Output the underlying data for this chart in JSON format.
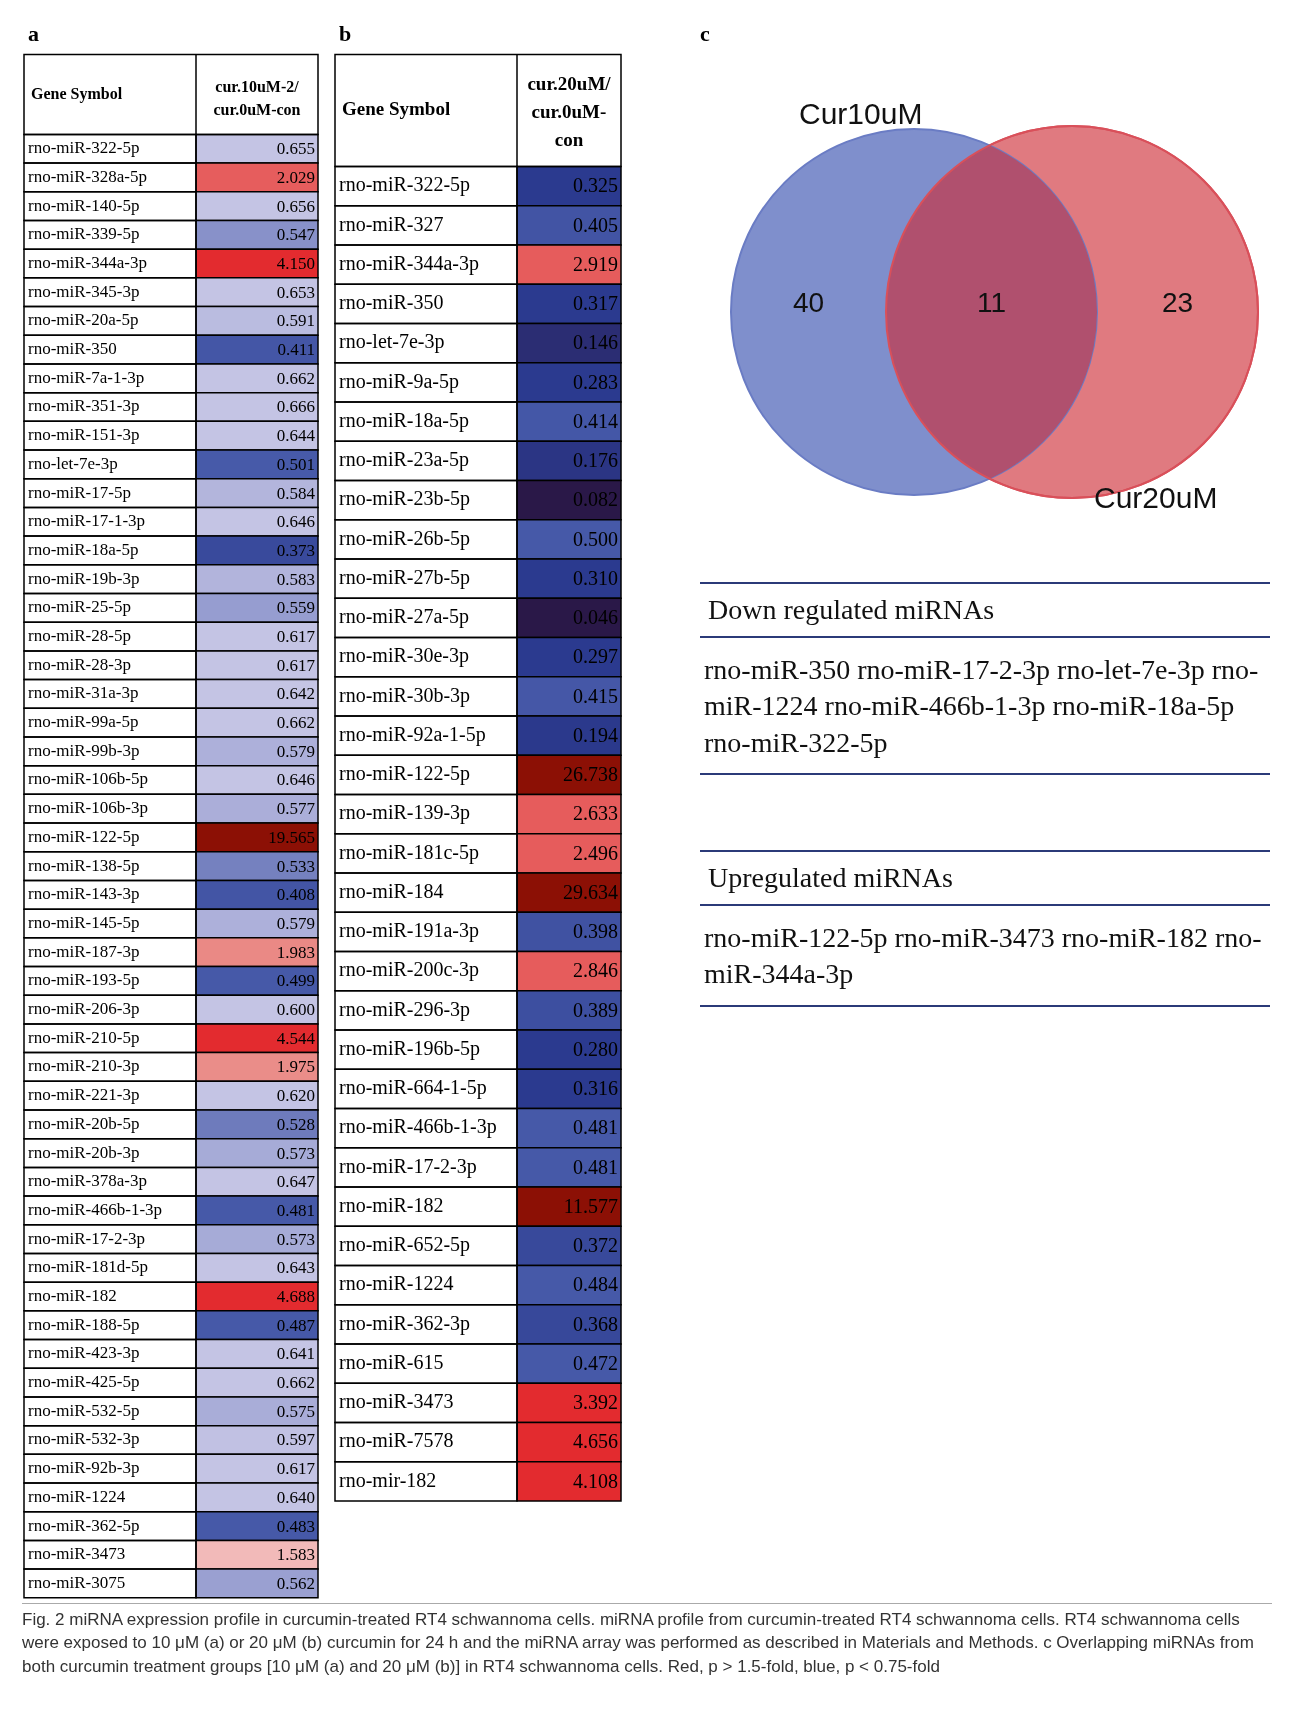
{
  "chart_data": [
    {
      "type": "heatmap",
      "title": "a",
      "ylabel": "Gene Symbol",
      "categories": [
        "cur.10uM-2/cur.0uM-con"
      ],
      "y_categories": [
        "rno-miR-322-5p",
        "rno-miR-328a-5p",
        "rno-miR-140-5p",
        "rno-miR-339-5p",
        "rno-miR-344a-3p",
        "rno-miR-345-3p",
        "rno-miR-20a-5p",
        "rno-miR-350",
        "rno-miR-7a-1-3p",
        "rno-miR-351-3p",
        "rno-miR-151-3p",
        "rno-let-7e-3p",
        "rno-miR-17-5p",
        "rno-miR-17-1-3p",
        "rno-miR-18a-5p",
        "rno-miR-19b-3p",
        "rno-miR-25-5p",
        "rno-miR-28-5p",
        "rno-miR-28-3p",
        "rno-miR-31a-3p",
        "rno-miR-99a-5p",
        "rno-miR-99b-3p",
        "rno-miR-106b-5p",
        "rno-miR-106b-3p",
        "rno-miR-122-5p",
        "rno-miR-138-5p",
        "rno-miR-143-3p",
        "rno-miR-145-5p",
        "rno-miR-187-3p",
        "rno-miR-193-5p",
        "rno-miR-206-3p",
        "rno-miR-210-5p",
        "rno-miR-210-3p",
        "rno-miR-221-3p",
        "rno-miR-20b-5p",
        "rno-miR-20b-3p",
        "rno-miR-378a-3p",
        "rno-miR-466b-1-3p",
        "rno-miR-17-2-3p",
        "rno-miR-181d-5p",
        "rno-miR-182",
        "rno-miR-188-5p",
        "rno-miR-423-3p",
        "rno-miR-425-5p",
        "rno-miR-532-5p",
        "rno-miR-532-3p",
        "rno-miR-92b-3p",
        "rno-miR-1224",
        "rno-miR-362-5p",
        "rno-miR-3473",
        "rno-miR-3075"
      ],
      "cells": [
        [
          0.655
        ],
        [
          2.029
        ],
        [
          0.656
        ],
        [
          0.547
        ],
        [
          4.15
        ],
        [
          0.653
        ],
        [
          0.591
        ],
        [
          0.411
        ],
        [
          0.662
        ],
        [
          0.666
        ],
        [
          0.644
        ],
        [
          0.501
        ],
        [
          0.584
        ],
        [
          0.646
        ],
        [
          0.373
        ],
        [
          0.583
        ],
        [
          0.559
        ],
        [
          0.617
        ],
        [
          0.617
        ],
        [
          0.642
        ],
        [
          0.662
        ],
        [
          0.579
        ],
        [
          0.646
        ],
        [
          0.577
        ],
        [
          19.565
        ],
        [
          0.533
        ],
        [
          0.408
        ],
        [
          0.579
        ],
        [
          1.983
        ],
        [
          0.499
        ],
        [
          0.6
        ],
        [
          4.544
        ],
        [
          1.975
        ],
        [
          0.62
        ],
        [
          0.528
        ],
        [
          0.573
        ],
        [
          0.647
        ],
        [
          0.481
        ],
        [
          0.573
        ],
        [
          0.643
        ],
        [
          4.688
        ],
        [
          0.487
        ],
        [
          0.641
        ],
        [
          0.662
        ],
        [
          0.575
        ],
        [
          0.597
        ],
        [
          0.617
        ],
        [
          0.64
        ],
        [
          0.483
        ],
        [
          1.583
        ],
        [
          0.562
        ]
      ],
      "cell_labels": [
        [
          "0.655"
        ],
        [
          "2.029"
        ],
        [
          "0.656"
        ],
        [
          "0.547"
        ],
        [
          "4.150"
        ],
        [
          "0.653"
        ],
        [
          "0.591"
        ],
        [
          "0.411"
        ],
        [
          "0.662"
        ],
        [
          "0.666"
        ],
        [
          "0.644"
        ],
        [
          "0.501"
        ],
        [
          "0.584"
        ],
        [
          "0.646"
        ],
        [
          "0.373"
        ],
        [
          "0.583"
        ],
        [
          "0.559"
        ],
        [
          "0.617"
        ],
        [
          "0.617"
        ],
        [
          "0.642"
        ],
        [
          "0.662"
        ],
        [
          "0.579"
        ],
        [
          "0.646"
        ],
        [
          "0.577"
        ],
        [
          "19.565"
        ],
        [
          "0.533"
        ],
        [
          "0.408"
        ],
        [
          "0.579"
        ],
        [
          "1.983"
        ],
        [
          "0.499"
        ],
        [
          "0.600"
        ],
        [
          "4.544"
        ],
        [
          "1.975"
        ],
        [
          "0.620"
        ],
        [
          "0.528"
        ],
        [
          "0.573"
        ],
        [
          "0.647"
        ],
        [
          "0.481"
        ],
        [
          "0.573"
        ],
        [
          "0.643"
        ],
        [
          "4.688"
        ],
        [
          "0.487"
        ],
        [
          "0.641"
        ],
        [
          "0.662"
        ],
        [
          "0.575"
        ],
        [
          "0.597"
        ],
        [
          "0.617"
        ],
        [
          "0.640"
        ],
        [
          "0.483"
        ],
        [
          "1.583"
        ],
        [
          "0.562"
        ]
      ]
    },
    {
      "type": "heatmap",
      "title": "b",
      "ylabel": "Gene Symbol",
      "categories": [
        "cur.20uM/cur.0uM-con"
      ],
      "y_categories": [
        "rno-miR-322-5p",
        "rno-miR-327",
        "rno-miR-344a-3p",
        "rno-miR-350",
        "rno-let-7e-3p",
        "rno-miR-9a-5p",
        "rno-miR-18a-5p",
        "rno-miR-23a-5p",
        "rno-miR-23b-5p",
        "rno-miR-26b-5p",
        "rno-miR-27b-5p",
        "rno-miR-27a-5p",
        "rno-miR-30e-3p",
        "rno-miR-30b-3p",
        "rno-miR-92a-1-5p",
        "rno-miR-122-5p",
        "rno-miR-139-3p",
        "rno-miR-181c-5p",
        "rno-miR-184",
        "rno-miR-191a-3p",
        "rno-miR-200c-3p",
        "rno-miR-296-3p",
        "rno-miR-196b-5p",
        "rno-miR-664-1-5p",
        "rno-miR-466b-1-3p",
        "rno-miR-17-2-3p",
        "rno-miR-182",
        "rno-miR-652-5p",
        "rno-miR-1224",
        "rno-miR-362-3p",
        "rno-miR-615",
        "rno-miR-3473",
        "rno-miR-7578",
        "rno-mir-182"
      ],
      "cells": [
        [
          0.325
        ],
        [
          0.405
        ],
        [
          2.919
        ],
        [
          0.317
        ],
        [
          0.146
        ],
        [
          0.283
        ],
        [
          0.414
        ],
        [
          0.176
        ],
        [
          0.082
        ],
        [
          0.5
        ],
        [
          0.31
        ],
        [
          0.046
        ],
        [
          0.297
        ],
        [
          0.415
        ],
        [
          0.194
        ],
        [
          26.738
        ],
        [
          2.633
        ],
        [
          2.496
        ],
        [
          29.634
        ],
        [
          0.398
        ],
        [
          2.846
        ],
        [
          0.389
        ],
        [
          0.28
        ],
        [
          0.316
        ],
        [
          0.481
        ],
        [
          0.481
        ],
        [
          11.577
        ],
        [
          0.372
        ],
        [
          0.484
        ],
        [
          0.368
        ],
        [
          0.472
        ],
        [
          3.392
        ],
        [
          4.656
        ],
        [
          4.108
        ]
      ],
      "cell_labels": [
        [
          "0.325"
        ],
        [
          "0.405"
        ],
        [
          "2.919"
        ],
        [
          "0.317"
        ],
        [
          "0.146"
        ],
        [
          "0.283"
        ],
        [
          "0.414"
        ],
        [
          "0.176"
        ],
        [
          "0.082"
        ],
        [
          "0.500"
        ],
        [
          "0.310"
        ],
        [
          "0.046"
        ],
        [
          "0.297"
        ],
        [
          "0.415"
        ],
        [
          "0.194"
        ],
        [
          "26.738"
        ],
        [
          "2.633"
        ],
        [
          "2.496"
        ],
        [
          "29.634"
        ],
        [
          "0.398"
        ],
        [
          "2.846"
        ],
        [
          "0.389"
        ],
        [
          "0.280"
        ],
        [
          "0.316"
        ],
        [
          "0.481"
        ],
        [
          "0.481"
        ],
        [
          "11.577"
        ],
        [
          "0.372"
        ],
        [
          "0.484"
        ],
        [
          "0.368"
        ],
        [
          "0.472"
        ],
        [
          "3.392"
        ],
        [
          "4.656"
        ],
        [
          "4.108"
        ]
      ]
    },
    {
      "type": "other",
      "title": "c",
      "categories": [
        null,
        null,
        null
      ],
      "values": [
        40,
        11,
        23
      ],
      "data_labels": true,
      "annotations": [
        "Cur10uM",
        "Cur20uM",
        "Down regulated miRNAs",
        "rno-miR-350 rno-miR-17-2-3p rno-let-7e-3p rno-miR-1224 rno-miR-466b-1-3p rno-miR-18a-5p rno-miR-322-5p",
        "Upregulated miRNAs",
        "rno-miR-122-5p rno-miR-3473 rno-miR-182 rno-miR-344a-3p",
        "Fig. 2 miRNA expression profile in curcumin-treated RT4 schwannoma cells. miRNA profile from curcumin-treated RT4 schwannoma cells. RT4 schwannoma cells were exposed to 10 μM (a) or 20 μM (b) curcumin for 24 h and the miRNA array was performed as described in Materials and Methods. c Overlapping miRNAs from both curcumin treatment groups [10 μM (a) and 20 μM (b)] in RT4 schwannoma cells. Red, p > 1.5-fold, blue, p < 0.75-fold"
      ]
    }
  ]
}
